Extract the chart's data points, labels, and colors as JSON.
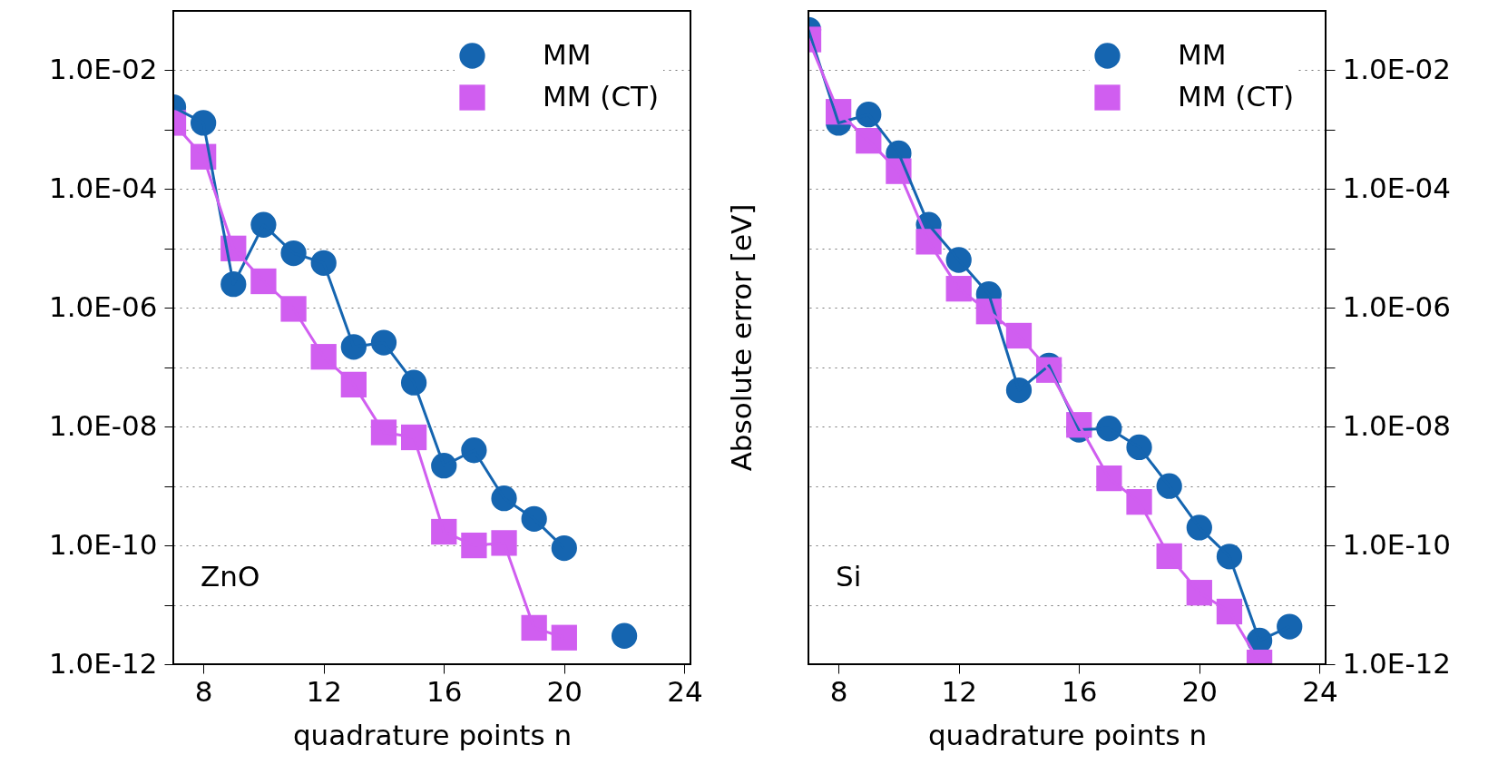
{
  "chart_data": [
    {
      "type": "line",
      "xlabel": "quadrature points n",
      "annotations": [
        "ZnO"
      ],
      "log": "y",
      "grid": "y",
      "legend": "top right",
      "x": [
        7,
        8,
        9,
        10,
        11,
        12,
        13,
        14,
        15,
        16,
        17,
        18,
        19,
        20,
        21,
        22
      ],
      "xlim": [
        7,
        24.2
      ],
      "xticks": [
        8,
        12,
        16,
        20,
        24
      ],
      "ylim": [
        1e-12,
        0.1
      ],
      "yticks": [
        {
          "value": 1e-12,
          "label": "1.0E-12"
        },
        {
          "value": 1e-11,
          "label": null
        },
        {
          "value": 1e-10,
          "label": "1.0E-10"
        },
        {
          "value": 1e-09,
          "label": null
        },
        {
          "value": 1e-08,
          "label": "1.0E-08"
        },
        {
          "value": 1e-07,
          "label": null
        },
        {
          "value": 1e-06,
          "label": "1.0E-06"
        },
        {
          "value": 1e-05,
          "label": null
        },
        {
          "value": 0.0001,
          "label": "1.0E-04"
        },
        {
          "value": 0.001,
          "label": null
        },
        {
          "value": 0.01,
          "label": "1.0E-02"
        }
      ],
      "series": [
        {
          "name": "MM",
          "color": "#1565b0",
          "marker": "circle",
          "values": [
            0.0024,
            0.0013,
            2.5e-06,
            2.5e-05,
            8.3e-06,
            5.7e-06,
            2.2e-07,
            2.6e-07,
            5.5e-08,
            2.2e-09,
            4e-09,
            6.2e-10,
            2.8e-10,
            9e-11,
            null,
            3e-12
          ]
        },
        {
          "name": "MM (CT)",
          "color": "#d05ef0",
          "marker": "square",
          "values": [
            0.0013,
            0.00035,
            1e-05,
            2.8e-06,
            9.6e-07,
            1.5e-07,
            5.1e-08,
            8e-09,
            6.6e-09,
            1.7e-10,
            1e-10,
            1.1e-10,
            4.1e-12,
            2.8e-12,
            null,
            null
          ]
        }
      ]
    },
    {
      "type": "line",
      "xlabel": "quadrature points n",
      "ylabel": "Absolute error [eV]",
      "annotations": [
        "Si"
      ],
      "log": "y2",
      "grid": "y",
      "legend": "top right",
      "x": [
        7,
        8,
        9,
        10,
        11,
        12,
        13,
        14,
        15,
        16,
        17,
        18,
        19,
        20,
        21,
        22,
        23
      ],
      "xlim": [
        7,
        24.2
      ],
      "xticks": [
        8,
        12,
        16,
        20,
        24
      ],
      "y2lim": [
        1e-12,
        0.1
      ],
      "y2ticks": [
        {
          "value": 1e-12,
          "label": "1.0E-12"
        },
        {
          "value": 1e-11,
          "label": null
        },
        {
          "value": 1e-10,
          "label": "1.0E-10"
        },
        {
          "value": 1e-09,
          "label": null
        },
        {
          "value": 1e-08,
          "label": "1.0E-08"
        },
        {
          "value": 1e-07,
          "label": null
        },
        {
          "value": 1e-06,
          "label": "1.0E-06"
        },
        {
          "value": 1e-05,
          "label": null
        },
        {
          "value": 0.0001,
          "label": "1.0E-04"
        },
        {
          "value": 0.001,
          "label": null
        },
        {
          "value": 0.01,
          "label": "1.0E-02"
        }
      ],
      "series": [
        {
          "name": "MM",
          "color": "#1565b0",
          "marker": "circle",
          "axis": "y2",
          "values": [
            0.048,
            0.0013,
            0.0018,
            0.0004,
            2.5e-05,
            6.4e-06,
            1.7e-06,
            4.1e-08,
            1.07e-07,
            8.9e-09,
            9.3e-09,
            4.5e-09,
            1e-09,
            2e-10,
            6.5e-11,
            2.5e-12,
            4.3e-12
          ]
        },
        {
          "name": "MM (CT)",
          "color": "#d05ef0",
          "marker": "square",
          "axis": "y2",
          "values": [
            0.033,
            0.002,
            0.00065,
            0.0002,
            1.3e-05,
            2.1e-06,
            8.7e-07,
            3.4e-07,
            9e-08,
            1.07e-08,
            1.35e-09,
            5.4e-10,
            6.6e-11,
            1.6e-11,
            7.7e-12,
            1.07e-12,
            null
          ]
        }
      ]
    }
  ]
}
